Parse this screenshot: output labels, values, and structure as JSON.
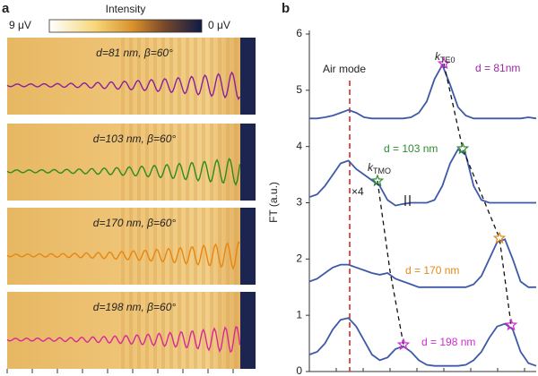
{
  "panel_labels": [
    "a",
    "b"
  ],
  "colorbar": {
    "title": "Intensity",
    "max_label": "9 μV",
    "min_label": "0 μV"
  },
  "images": [
    {
      "label": "d=81 nm, β=60°",
      "color": "#8a1f9e"
    },
    {
      "label": "d=103 nm, β=60°",
      "color": "#2f8a1e"
    },
    {
      "label": "d=170 nm, β=60°",
      "color": "#e8860f"
    },
    {
      "label": "d=198 nm, β=60°",
      "color": "#d7289a"
    }
  ],
  "chart_data": {
    "type": "line",
    "ylabel": "FT (a.u.)",
    "ylim": [
      0,
      6
    ],
    "yticks": [
      0,
      1,
      2,
      3,
      4,
      5,
      6
    ],
    "categories": [
      null,
      null,
      null,
      null,
      null,
      null,
      null,
      null,
      null,
      null,
      null,
      null,
      null,
      null,
      null,
      null,
      null,
      null,
      null,
      null,
      null,
      null,
      null,
      null,
      null,
      null,
      null,
      null,
      null,
      null
    ],
    "series": [
      {
        "color": "#3d5aa8",
        "values": [
          4.5,
          4.5,
          4.52,
          4.55,
          4.6,
          4.65,
          4.6,
          4.52,
          4.5,
          4.5,
          4.5,
          4.5,
          4.5,
          4.52,
          4.6,
          4.8,
          5.2,
          5.45,
          5.1,
          4.7,
          4.55,
          4.5,
          4.5,
          4.5,
          4.5,
          4.5,
          4.5,
          4.5,
          4.52,
          4.5
        ]
      },
      {
        "color": "#3d5aa8",
        "values": [
          3.1,
          3.15,
          3.3,
          3.5,
          3.7,
          3.75,
          3.6,
          3.5,
          3.4,
          3.3,
          3.05,
          2.95,
          2.98,
          3.0,
          3.0,
          3.0,
          3.05,
          3.3,
          3.7,
          3.95,
          3.85,
          3.3,
          3.05,
          3.0,
          3.0,
          3.0,
          3.0,
          3.0,
          3.0,
          3.0
        ]
      },
      {
        "color": "#3d5aa8",
        "values": [
          1.6,
          1.65,
          1.75,
          1.85,
          1.9,
          1.9,
          1.85,
          1.8,
          1.75,
          1.72,
          1.75,
          1.65,
          1.6,
          1.55,
          1.5,
          1.5,
          1.5,
          1.5,
          1.5,
          1.5,
          1.5,
          1.55,
          1.7,
          2.0,
          2.3,
          2.35,
          2.0,
          1.6,
          1.5,
          1.5
        ]
      },
      {
        "color": "#3d5aa8",
        "values": [
          0.3,
          0.35,
          0.5,
          0.75,
          0.92,
          0.95,
          0.8,
          0.55,
          0.3,
          0.2,
          0.25,
          0.4,
          0.45,
          0.35,
          0.2,
          0.12,
          0.1,
          0.1,
          0.1,
          0.1,
          0.12,
          0.2,
          0.35,
          0.6,
          0.8,
          0.85,
          0.75,
          0.35,
          0.15,
          0.1
        ]
      }
    ],
    "annotations": [
      {
        "text": "Air mode",
        "color": "#222222"
      },
      {
        "text": "k",
        "sub": "TE0",
        "color": "#222222"
      },
      {
        "text": "d = 81nm",
        "color": "#9b2aa6"
      },
      {
        "text": "d = 103 nm",
        "color": "#2e8b2e"
      },
      {
        "text": "k",
        "sub": "TMO",
        "color": "#222222"
      },
      {
        "text": "×4",
        "color": "#222222"
      },
      {
        "text": "d = 170 nm",
        "color": "#e08a1a"
      },
      {
        "text": "d = 198 nm",
        "color": "#d02bd0"
      }
    ]
  }
}
